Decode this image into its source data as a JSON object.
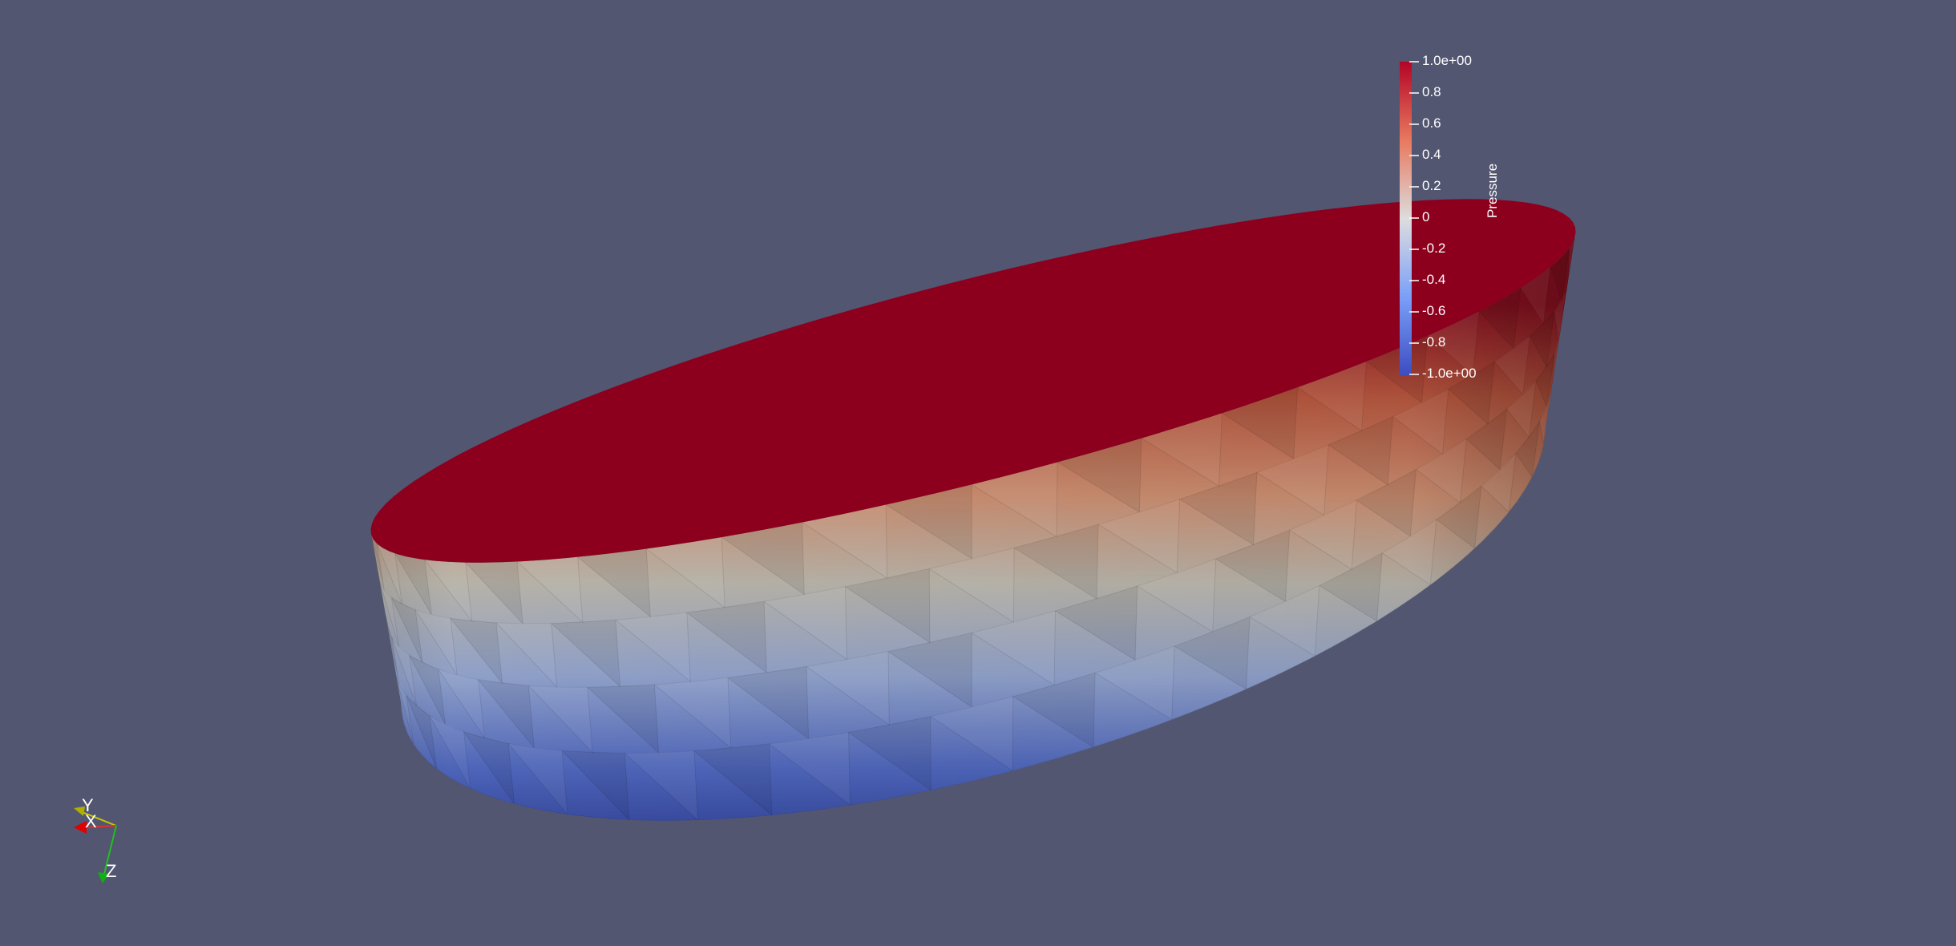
{
  "scalar_bar": {
    "title": "Pressure",
    "labels": [
      "1.0e+00",
      "0.8",
      "0.6",
      "0.4",
      "0.2",
      "0",
      "-0.2",
      "-0.4",
      "-0.6",
      "-0.8",
      "-1.0e+00"
    ],
    "range": [
      -1.0,
      1.0
    ],
    "colormap": "Cool to Warm",
    "colors": {
      "high": "#b40426",
      "mid": "#dddddd",
      "low": "#3b4cc0"
    }
  },
  "axes": {
    "x": "X",
    "y": "Y",
    "z": "Z"
  },
  "colors": {
    "background": "#525671",
    "top_face": "#8c001e"
  }
}
